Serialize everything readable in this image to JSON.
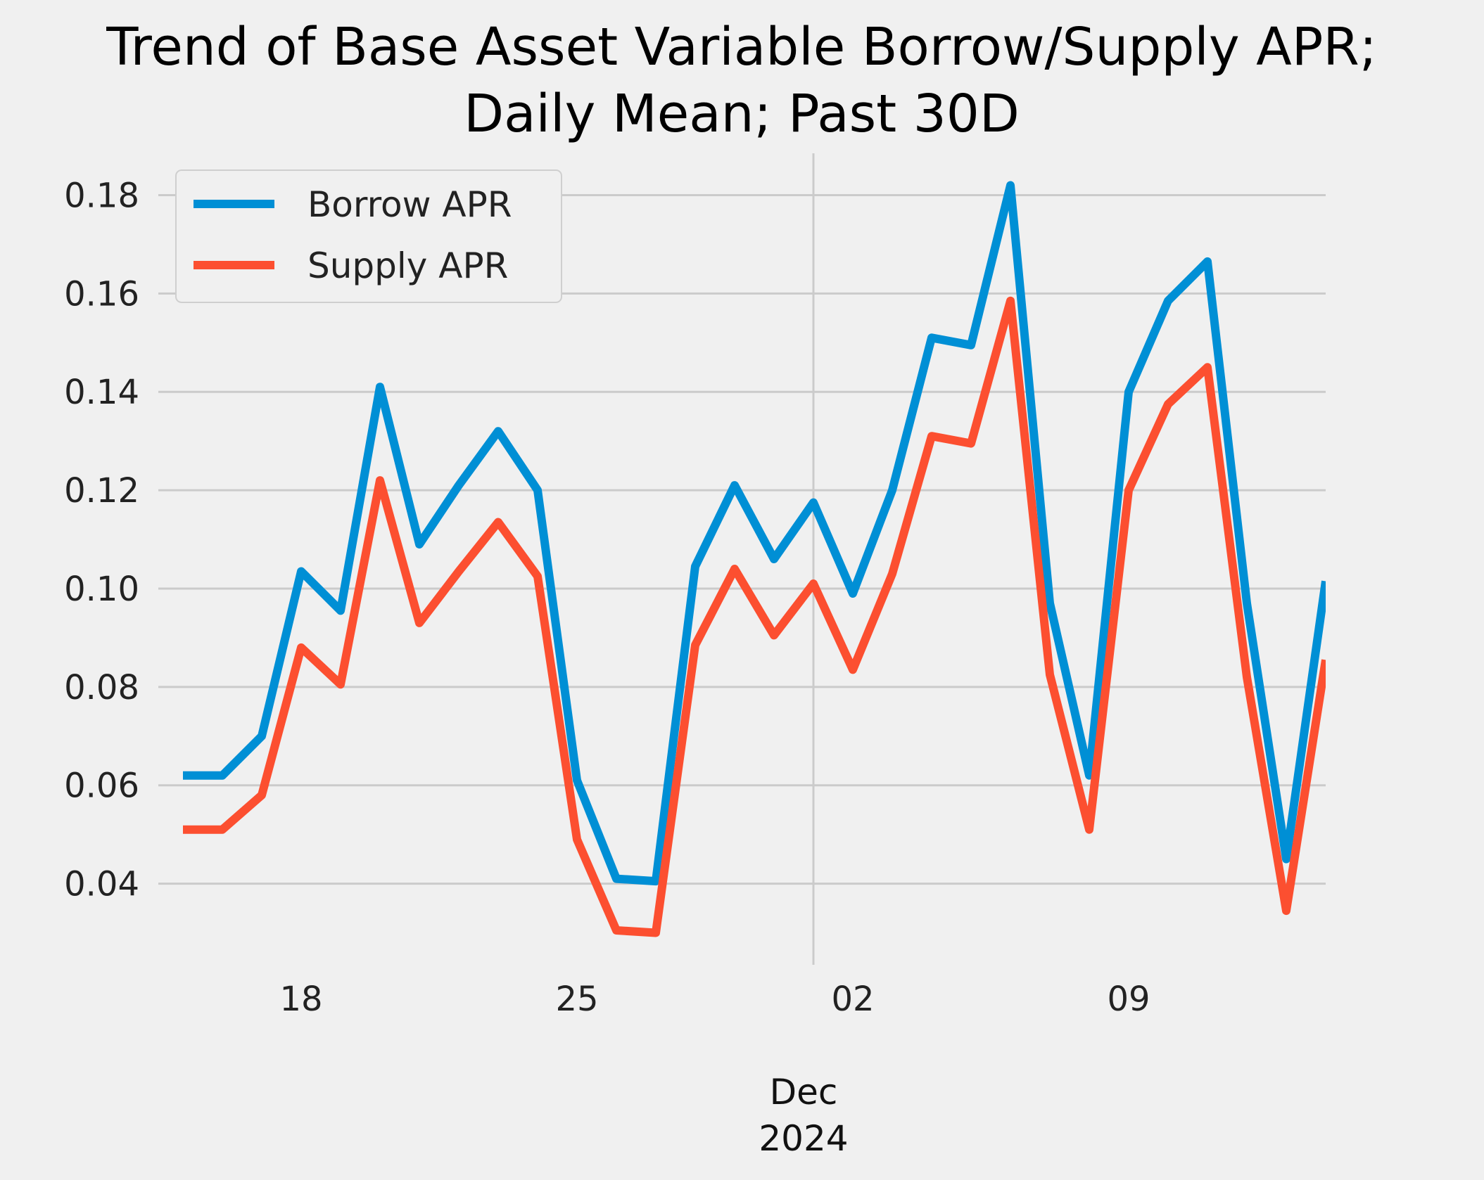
{
  "chart_data": {
    "type": "line",
    "title": "Trend of Base Asset Variable Borrow/Supply APR;",
    "subtitle": "Daily Mean; Past 30D",
    "xlabel": "",
    "ylabel": "",
    "x": [
      "2024-11-15",
      "2024-11-16",
      "2024-11-17",
      "2024-11-18",
      "2024-11-19",
      "2024-11-20",
      "2024-11-21",
      "2024-11-22",
      "2024-11-23",
      "2024-11-24",
      "2024-11-25",
      "2024-11-26",
      "2024-11-27",
      "2024-11-28",
      "2024-11-29",
      "2024-11-30",
      "2024-12-01",
      "2024-12-02",
      "2024-12-03",
      "2024-12-04",
      "2024-12-05",
      "2024-12-06",
      "2024-12-07",
      "2024-12-08",
      "2024-12-09",
      "2024-12-10",
      "2024-12-11",
      "2024-12-12",
      "2024-12-13",
      "2024-12-14"
    ],
    "series": [
      {
        "name": "Borrow APR",
        "color": "#008fd5",
        "values": [
          0.062,
          0.062,
          0.07,
          0.1035,
          0.0955,
          0.141,
          0.109,
          0.121,
          0.132,
          0.12,
          0.061,
          0.041,
          0.0405,
          0.1045,
          0.121,
          0.106,
          0.1175,
          0.099,
          0.12,
          0.151,
          0.1495,
          0.182,
          0.097,
          0.062,
          0.14,
          0.1585,
          0.1665,
          0.097,
          0.045,
          0.1015
        ]
      },
      {
        "name": "Supply APR",
        "color": "#fc4f30",
        "values": [
          0.051,
          0.051,
          0.058,
          0.088,
          0.0805,
          0.122,
          0.093,
          0.1035,
          0.1135,
          0.1025,
          0.049,
          0.0305,
          0.03,
          0.0885,
          0.104,
          0.0905,
          0.101,
          0.0835,
          0.103,
          0.131,
          0.1295,
          0.1585,
          0.0825,
          0.051,
          0.12,
          0.1375,
          0.145,
          0.082,
          0.0345,
          0.0855
        ]
      }
    ],
    "xlim": [
      "2024-11-14T09:00",
      "2024-12-14"
    ],
    "ylim": [
      0.0235,
      0.1885
    ],
    "yticks": [
      0.04,
      0.06,
      0.08,
      0.1,
      0.12,
      0.14,
      0.16,
      0.18
    ],
    "ytick_labels": [
      "0.04",
      "0.06",
      "0.08",
      "0.10",
      "0.12",
      "0.14",
      "0.16",
      "0.18"
    ],
    "xticks": [
      "2024-11-18",
      "2024-11-25",
      "2024-12-02",
      "2024-12-09"
    ],
    "xtick_labels": [
      "18",
      "25",
      "02",
      "09"
    ],
    "x_secondary_label": [
      "Dec",
      "2024"
    ],
    "grid": true,
    "legend_position": "upper-left"
  }
}
